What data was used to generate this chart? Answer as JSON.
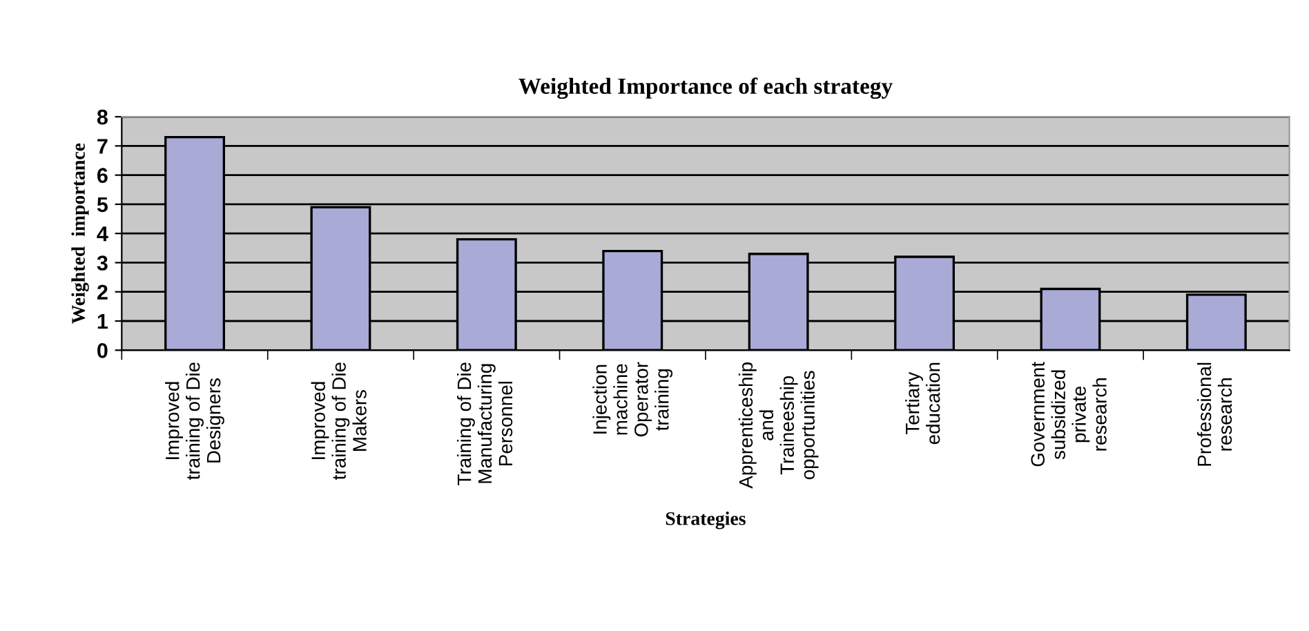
{
  "chart_data": {
    "type": "bar",
    "title": "Weighted Importance of each strategy",
    "xlabel": "Strategies",
    "ylabel": "Weighted  importance",
    "categories": [
      "Improved\ntraining of Die\nDesigners",
      "Improved\ntraining of Die\nMakers",
      "Training of Die\nManufacturing\nPersonnel",
      "Injection\nmachine\nOperator\ntraining",
      "Apprenticeship\nand\nTraineeship\nopportunities",
      "Tertiary\neducation",
      "Government\nsubsidized\nprivate\nresearch",
      "Professional\nresearch"
    ],
    "values": [
      7.3,
      4.9,
      3.8,
      3.4,
      3.3,
      3.2,
      2.1,
      1.9
    ],
    "color": "#aaaad6",
    "ylim": [
      0,
      8
    ],
    "yticks": [
      0,
      1,
      2,
      3,
      4,
      5,
      6,
      7,
      8
    ],
    "grid": "y",
    "legend": false
  }
}
